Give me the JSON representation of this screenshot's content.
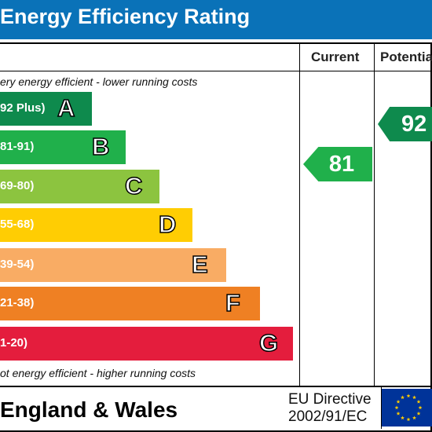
{
  "header": {
    "title": "Energy Efficiency Rating"
  },
  "columns": {
    "current": "Current",
    "potential": "Potentia"
  },
  "notes": {
    "top": "ery energy efficient - lower running costs",
    "bottom": "ot energy efficient - higher running costs"
  },
  "bands": [
    {
      "range": "92 Plus)",
      "letter": "A",
      "color": "#0e8a4d"
    },
    {
      "range": "81-91)",
      "letter": "B",
      "color": "#20b04b"
    },
    {
      "range": "69-80)",
      "letter": "C",
      "color": "#8cc43f"
    },
    {
      "range": "55-68)",
      "letter": "D",
      "color": "#ffcd03"
    },
    {
      "range": "39-54)",
      "letter": "E",
      "color": "#f9ac64"
    },
    {
      "range": "21-38)",
      "letter": "F",
      "color": "#ef8023"
    },
    {
      "range": "1-20)",
      "letter": "G",
      "color": "#e41d3d"
    }
  ],
  "ratings": {
    "current": {
      "value": "81",
      "color": "#20b04b"
    },
    "potential": {
      "value": "92",
      "color": "#0e8a4d"
    }
  },
  "footer": {
    "country": "England & Wales",
    "directive_line1": "EU Directive",
    "directive_line2": "2002/91/EC",
    "flag_icon": "eu-flag-icon"
  }
}
